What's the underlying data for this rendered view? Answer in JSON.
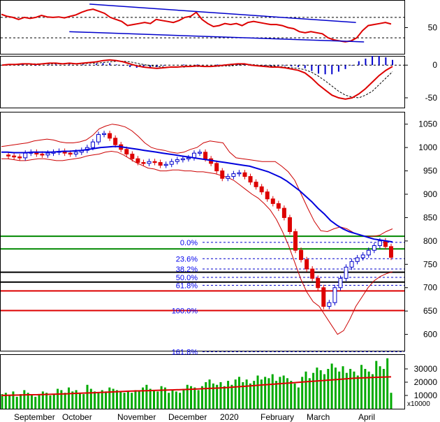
{
  "colors": {
    "price_line": "#dd0000",
    "trend_line": "#0000cc",
    "ma_blue": "#0000dd",
    "bollinger": "#cc0000",
    "fib_label": "#0000ee",
    "support_green": "#008800",
    "support_red": "#dd0000",
    "support_black": "#000000",
    "volume_bar": "#00aa00",
    "volume_ma": "#dd0000",
    "up_candle": "#0000cc",
    "down_candle": "#dd0000"
  },
  "x_axis": {
    "months": [
      "September",
      "October",
      "November",
      "December",
      "2020",
      "February",
      "March",
      "April"
    ]
  },
  "chart_data": [
    {
      "type": "line",
      "panel": "oscillator-top",
      "y_ticks": [
        50
      ],
      "ylim": [
        0,
        100
      ],
      "reference_levels": [
        70,
        30
      ],
      "series": [
        {
          "values": [
            76,
            72,
            70,
            66,
            70,
            68,
            70,
            74,
            71,
            70,
            71,
            69,
            72,
            75,
            80,
            84,
            86,
            82,
            78,
            70,
            66,
            62,
            54,
            56,
            58,
            60,
            58,
            66,
            64,
            62,
            60,
            64,
            70,
            72,
            80,
            66,
            58,
            52,
            54,
            58,
            56,
            58,
            54,
            60,
            62,
            60,
            58,
            56,
            56,
            54,
            50,
            48,
            42,
            40,
            42,
            40,
            38,
            30,
            26,
            24,
            22,
            24,
            30,
            44,
            54,
            56,
            58,
            60,
            57
          ]
        }
      ],
      "trend_lines": [
        {
          "from": [
            0.22,
            96
          ],
          "to": [
            0.88,
            60
          ]
        },
        {
          "from": [
            0.17,
            42
          ],
          "to": [
            0.9,
            22
          ]
        }
      ]
    },
    {
      "type": "line",
      "panel": "macd",
      "y_ticks": [
        0,
        -50
      ],
      "ylim": [
        -65,
        12
      ],
      "series": [
        {
          "values": [
            0,
            1,
            1,
            2,
            2,
            1,
            2,
            3,
            3,
            2,
            3,
            2,
            3,
            4,
            5,
            7,
            8,
            7,
            5,
            2,
            -1,
            -3,
            -4,
            -5,
            -4,
            -3,
            -3,
            -2,
            -2,
            -1,
            -2,
            -2,
            -1,
            0,
            1,
            2,
            2,
            0,
            -1,
            -2,
            -3,
            -3,
            -4,
            -6,
            -8,
            -12,
            -20,
            -30,
            -38,
            -46,
            -50,
            -52,
            -50,
            -44,
            -36,
            -26,
            -16,
            -8,
            -2
          ]
        },
        {
          "values": [
            0,
            0,
            1,
            1,
            2,
            2,
            2,
            2,
            2,
            2,
            2,
            2,
            2,
            3,
            3,
            4,
            5,
            6,
            6,
            5,
            3,
            1,
            -1,
            -2,
            -3,
            -3,
            -3,
            -3,
            -2,
            -2,
            -2,
            -2,
            -2,
            -1,
            -1,
            0,
            1,
            1,
            0,
            -1,
            -1,
            -2,
            -3,
            -4,
            -5,
            -7,
            -11,
            -17,
            -24,
            -32,
            -40,
            -46,
            -49,
            -50,
            -46,
            -40,
            -30,
            -20,
            -10
          ]
        }
      ],
      "histogram": [
        0,
        1,
        0,
        1,
        0,
        -1,
        0,
        1,
        1,
        0,
        1,
        0,
        1,
        1,
        2,
        3,
        3,
        1,
        -1,
        -3,
        -4,
        -4,
        -3,
        -3,
        -1,
        0,
        0,
        1,
        0,
        1,
        0,
        0,
        1,
        1,
        2,
        2,
        1,
        -1,
        -1,
        -1,
        -2,
        -1,
        -1,
        -2,
        -3,
        -5,
        -9,
        -13,
        -14,
        -14,
        -10,
        -6,
        -1,
        6,
        10,
        14,
        14,
        12,
        8
      ]
    },
    {
      "type": "line",
      "panel": "price",
      "y_ticks": [
        1050,
        1000,
        950,
        900,
        850,
        800,
        750,
        700,
        650,
        600
      ],
      "ylim": [
        565,
        1075
      ],
      "fibonacci": [
        {
          "label": "0.0%",
          "value": 797
        },
        {
          "label": "23.6%",
          "value": 762
        },
        {
          "label": "38.2%",
          "value": 740
        },
        {
          "label": "50.0%",
          "value": 722
        },
        {
          "label": "61.8%",
          "value": 705
        },
        {
          "label": "100.0%",
          "value": 651
        },
        {
          "label": "161.8%",
          "value": 563
        }
      ],
      "support_lines": [
        {
          "value": 810,
          "color": "green"
        },
        {
          "value": 783,
          "color": "green"
        },
        {
          "value": 733,
          "color": "black"
        },
        {
          "value": 712,
          "color": "black"
        },
        {
          "value": 693,
          "color": "red"
        },
        {
          "value": 651,
          "color": "red"
        }
      ],
      "series": [
        {
          "name": "close",
          "values": [
            984,
            982,
            980,
            978,
            988,
            990,
            986,
            984,
            988,
            990,
            992,
            988,
            986,
            990,
            994,
            1000,
            1012,
            1028,
            1030,
            1020,
            1006,
            996,
            986,
            976,
            968,
            966,
            970,
            968,
            962,
            964,
            970,
            974,
            976,
            978,
            988,
            990,
            976,
            966,
            950,
            934,
            938,
            944,
            946,
            938,
            926,
            916,
            905,
            890,
            880,
            870,
            850,
            820,
            780,
            760,
            740,
            720,
            700,
            660,
            668,
            700,
            720,
            744,
            756,
            764,
            770,
            780,
            790,
            800,
            788,
            765
          ]
        }
      ],
      "moving_average": [
        990,
        990,
        989,
        989,
        989,
        990,
        990,
        990,
        990,
        991,
        992,
        992,
        993,
        994,
        996,
        998,
        1000,
        1001,
        1002,
        1002,
        1000,
        998,
        996,
        994,
        992,
        990,
        988,
        986,
        984,
        982,
        980,
        978,
        976,
        974,
        972,
        970,
        968,
        966,
        964,
        962,
        960,
        956,
        952,
        948,
        942,
        936,
        928,
        918,
        908,
        896,
        884,
        870,
        858,
        844,
        834,
        826,
        820,
        816,
        812,
        808,
        804,
        802,
        800,
        798
      ],
      "bollinger_upper": [
        1002,
        1004,
        1006,
        1008,
        1010,
        1014,
        1016,
        1018,
        1016,
        1012,
        1010,
        1010,
        1012,
        1016,
        1026,
        1040,
        1046,
        1050,
        1048,
        1044,
        1036,
        1024,
        1010,
        1000,
        996,
        994,
        990,
        988,
        990,
        996,
        1000,
        1010,
        1014,
        1012,
        1010,
        990,
        978,
        976,
        974,
        972,
        970,
        970,
        970,
        960,
        948,
        930,
        900,
        870,
        842,
        822,
        820,
        826,
        830,
        826,
        818,
        812,
        810,
        810,
        812,
        820,
        826
      ],
      "bollinger_lower": [
        976,
        976,
        974,
        972,
        972,
        974,
        976,
        976,
        974,
        972,
        972,
        974,
        976,
        978,
        982,
        984,
        986,
        990,
        992,
        990,
        984,
        976,
        968,
        962,
        956,
        954,
        950,
        950,
        952,
        952,
        950,
        950,
        948,
        948,
        946,
        944,
        940,
        936,
        930,
        920,
        910,
        900,
        892,
        880,
        866,
        846,
        820,
        790,
        754,
        718,
        690,
        670,
        660,
        640,
        620,
        600,
        608,
        632,
        660,
        680,
        700,
        715,
        724,
        730,
        734
      ]
    },
    {
      "type": "bar",
      "panel": "volume",
      "y_ticks": [
        30000,
        20000,
        10000
      ],
      "ylim": [
        0,
        40000
      ],
      "unit_label": "x10000",
      "values": [
        11000,
        12000,
        10000,
        13000,
        9000,
        11000,
        14000,
        12000,
        10000,
        9000,
        11000,
        13000,
        12000,
        10000,
        11000,
        15000,
        14000,
        12000,
        16000,
        13000,
        14000,
        12000,
        11000,
        18000,
        15000,
        13000,
        12000,
        14000,
        13000,
        16000,
        15000,
        14000,
        13000,
        12000,
        13000,
        12000,
        14000,
        13000,
        16000,
        18000,
        15000,
        14000,
        13000,
        17000,
        16000,
        12000,
        14000,
        13000,
        12000,
        15000,
        18000,
        17000,
        16000,
        14000,
        17000,
        20000,
        22000,
        19000,
        18000,
        20000,
        17000,
        21000,
        18000,
        22000,
        24000,
        20000,
        22000,
        19000,
        21000,
        25000,
        22000,
        24000,
        23000,
        26000,
        21000,
        24000,
        25000,
        23000,
        21000,
        19000,
        16000,
        24000,
        28000,
        23000,
        27000,
        31000,
        29000,
        26000,
        30000,
        34000,
        31000,
        28000,
        32000,
        27000,
        30000,
        28000,
        25000,
        33000,
        30000,
        28000,
        26000,
        36000,
        32000,
        30000,
        38000,
        12000
      ],
      "moving_average": [
        10000,
        10200,
        10300,
        10500,
        10600,
        10800,
        11000,
        11200,
        11500,
        11800,
        12000,
        12300,
        12600,
        12900,
        13200,
        13400,
        13600,
        13800,
        14000,
        14200,
        14400,
        14700,
        15000,
        15300,
        15600,
        16000,
        16500,
        17000,
        17500,
        18000,
        18500,
        19000,
        19500,
        20000,
        20500,
        21000,
        21500,
        22000,
        22500,
        23000,
        23300,
        23600,
        23800,
        24000
      ]
    }
  ]
}
